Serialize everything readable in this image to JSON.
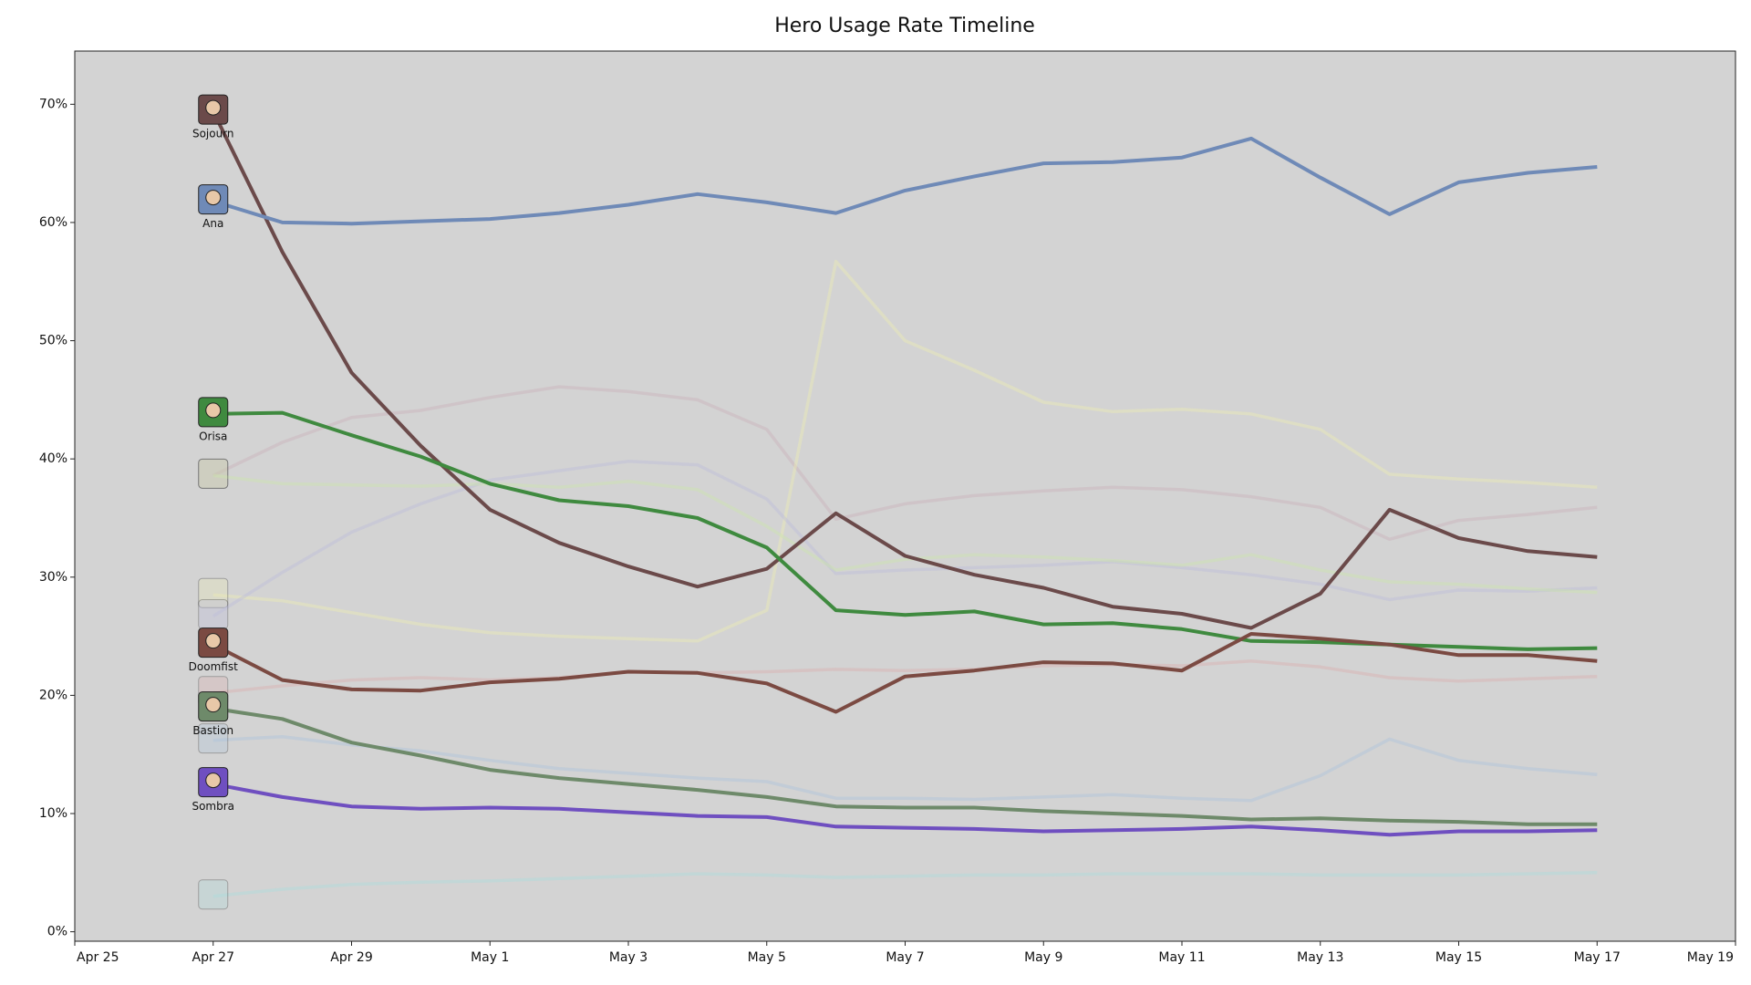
{
  "chart_data": {
    "type": "line",
    "title": "Hero Usage Rate Timeline",
    "x": [
      "Apr 27",
      "Apr 28",
      "Apr 29",
      "Apr 30",
      "May 1",
      "May 2",
      "May 3",
      "May 4",
      "May 5",
      "May 6",
      "May 7",
      "May 8",
      "May 9",
      "May 10",
      "May 11",
      "May 12",
      "May 13",
      "May 14",
      "May 15",
      "May 16",
      "May 17"
    ],
    "xlim": [
      "Apr 25",
      "May 19"
    ],
    "xticks": [
      "Apr 25",
      "Apr 27",
      "Apr 29",
      "May 1",
      "May 3",
      "May 5",
      "May 7",
      "May 9",
      "May 11",
      "May 13",
      "May 15",
      "May 17",
      "May 19"
    ],
    "ylim": [
      -0.8,
      74.5
    ],
    "yticks": [
      {
        "value": 0,
        "label": "0%"
      },
      {
        "value": 10,
        "label": "10%"
      },
      {
        "value": 20,
        "label": "20%"
      },
      {
        "value": 30,
        "label": "30%"
      },
      {
        "value": 40,
        "label": "40%"
      },
      {
        "value": 50,
        "label": "50%"
      },
      {
        "value": 60,
        "label": "60%"
      },
      {
        "value": 70,
        "label": "70%"
      }
    ],
    "grid": false,
    "series": [
      {
        "color": "#c8a8b4",
        "alpha": 0.35,
        "values": [
          38.6,
          41.4,
          43.5,
          44.1,
          45.2,
          46.1,
          45.7,
          45.0,
          42.5,
          34.9,
          36.2,
          36.9,
          37.3,
          37.6,
          37.4,
          36.8,
          35.9,
          33.2,
          34.8,
          35.3,
          35.9
        ]
      },
      {
        "color": "#ecebb4",
        "alpha": 0.45,
        "values": [
          28.5,
          28.0,
          27.0,
          26.0,
          25.3,
          25.0,
          24.8,
          24.6,
          27.2,
          56.7,
          50.0,
          47.5,
          44.8,
          44.0,
          44.2,
          43.8,
          42.5,
          38.7,
          38.3,
          38.0,
          37.6
        ]
      },
      {
        "color": "#bcbcdc",
        "alpha": 0.4,
        "values": [
          26.7,
          30.4,
          33.8,
          36.2,
          38.2,
          39.0,
          39.8,
          39.5,
          36.6,
          30.3,
          30.6,
          30.8,
          31.0,
          31.3,
          30.8,
          30.2,
          29.4,
          28.1,
          28.9,
          28.8,
          29.1
        ]
      },
      {
        "color": "#cce4ac",
        "alpha": 0.45,
        "values": [
          38.6,
          37.9,
          37.8,
          37.7,
          37.9,
          37.6,
          38.1,
          37.4,
          34.3,
          30.6,
          31.5,
          31.9,
          31.7,
          31.4,
          31.0,
          31.9,
          30.6,
          29.6,
          29.4,
          29.0,
          28.7
        ]
      },
      {
        "color": "#dcacac",
        "alpha": 0.4,
        "values": [
          20.2,
          20.8,
          21.3,
          21.5,
          21.3,
          21.5,
          22.0,
          21.9,
          22.0,
          22.2,
          22.1,
          22.2,
          22.5,
          22.6,
          22.5,
          22.9,
          22.4,
          21.5,
          21.2,
          21.4,
          21.6
        ]
      },
      {
        "color": "#acc4dc",
        "alpha": 0.45,
        "values": [
          16.2,
          16.5,
          15.8,
          15.3,
          14.5,
          13.8,
          13.4,
          13.0,
          12.7,
          11.3,
          11.3,
          11.2,
          11.4,
          11.6,
          11.3,
          11.1,
          13.2,
          16.3,
          14.5,
          13.8,
          13.3
        ]
      },
      {
        "color": "#acdcdc",
        "alpha": 0.45,
        "values": [
          3.0,
          3.6,
          4.0,
          4.2,
          4.3,
          4.5,
          4.7,
          4.9,
          4.8,
          4.6,
          4.7,
          4.8,
          4.8,
          4.9,
          4.9,
          4.9,
          4.8,
          4.8,
          4.8,
          4.9,
          5.0
        ]
      },
      {
        "name": "Sojourn",
        "color": "#6b4a4a",
        "values": [
          69.4,
          57.5,
          47.3,
          41.1,
          35.7,
          32.9,
          30.9,
          29.2,
          30.7,
          35.4,
          31.8,
          30.2,
          29.1,
          27.5,
          26.9,
          25.7,
          28.6,
          35.7,
          33.3,
          32.2,
          31.7
        ]
      },
      {
        "name": "Ana",
        "color": "#6f8ab7",
        "values": [
          61.8,
          60.0,
          59.9,
          60.1,
          60.3,
          60.8,
          61.5,
          62.4,
          61.7,
          60.8,
          62.7,
          63.9,
          65.0,
          65.1,
          65.5,
          67.1,
          63.8,
          60.7,
          63.4,
          64.2,
          64.7
        ]
      },
      {
        "name": "Orisa",
        "color": "#3f8a3f",
        "values": [
          43.8,
          43.9,
          42.0,
          40.2,
          37.9,
          36.5,
          36.0,
          35.0,
          32.5,
          27.2,
          26.8,
          27.1,
          26.0,
          26.1,
          25.6,
          24.6,
          24.5,
          24.3,
          24.1,
          23.9,
          24.0
        ]
      },
      {
        "name": "Doomfist",
        "color": "#7b4a42",
        "values": [
          24.3,
          21.3,
          20.5,
          20.4,
          21.1,
          21.4,
          22.0,
          21.9,
          21.0,
          18.6,
          21.6,
          22.1,
          22.8,
          22.7,
          22.1,
          25.2,
          24.8,
          24.3,
          23.4,
          23.4,
          22.9
        ]
      },
      {
        "name": "Bastion",
        "color": "#6e8a6a",
        "values": [
          18.9,
          18.0,
          16.0,
          14.9,
          13.7,
          13.0,
          12.5,
          12.0,
          11.4,
          10.6,
          10.5,
          10.5,
          10.2,
          10.0,
          9.8,
          9.5,
          9.6,
          9.4,
          9.3,
          9.1,
          9.1
        ]
      },
      {
        "name": "Sombra",
        "color": "#6f4fc0",
        "values": [
          12.5,
          11.4,
          10.6,
          10.4,
          10.5,
          10.4,
          10.1,
          9.8,
          9.7,
          8.9,
          8.8,
          8.7,
          8.5,
          8.6,
          8.7,
          8.9,
          8.6,
          8.2,
          8.5,
          8.5,
          8.6
        ]
      }
    ]
  }
}
